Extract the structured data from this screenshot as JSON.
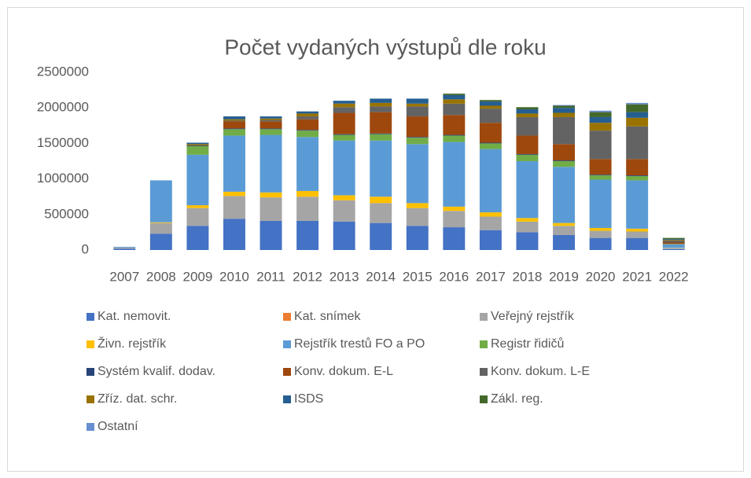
{
  "chart_data": {
    "type": "stacked-bar",
    "title": "Počet vydaných výstupů dle roku",
    "categories": [
      "2007",
      "2008",
      "2009",
      "2010",
      "2011",
      "2012",
      "2013",
      "2014",
      "2015",
      "2016",
      "2017",
      "2018",
      "2019",
      "2020",
      "2021",
      "2022"
    ],
    "ylim": [
      0,
      2500000
    ],
    "yticks": [
      0,
      500000,
      1000000,
      1500000,
      2000000,
      2500000
    ],
    "grid": false,
    "legend": "bottom",
    "series": [
      {
        "name": "Kat. nemovit.",
        "color": "#4472c4",
        "values": [
          20000,
          230000,
          340000,
          440000,
          410000,
          410000,
          400000,
          380000,
          340000,
          320000,
          280000,
          250000,
          210000,
          170000,
          170000,
          15000
        ]
      },
      {
        "name": "Kat. snímek",
        "color": "#ed7d31",
        "values": [
          0,
          0,
          0,
          0,
          0,
          0,
          0,
          0,
          0,
          0,
          0,
          0,
          0,
          0,
          0,
          0
        ]
      },
      {
        "name": "Veřejný rejstřík",
        "color": "#a5a5a5",
        "values": [
          15000,
          150000,
          250000,
          320000,
          330000,
          340000,
          300000,
          280000,
          250000,
          230000,
          190000,
          150000,
          130000,
          100000,
          90000,
          10000
        ]
      },
      {
        "name": "Živn. rejstřík",
        "color": "#ffc000",
        "values": [
          0,
          10000,
          40000,
          60000,
          70000,
          80000,
          70000,
          90000,
          70000,
          60000,
          60000,
          50000,
          40000,
          40000,
          40000,
          5000
        ]
      },
      {
        "name": "Rejstřík trestů FO a PO",
        "color": "#5b9bd5",
        "values": [
          10000,
          590000,
          710000,
          790000,
          810000,
          760000,
          770000,
          790000,
          830000,
          910000,
          890000,
          800000,
          790000,
          680000,
          680000,
          50000
        ]
      },
      {
        "name": "Registr řidičů",
        "color": "#70ad47",
        "values": [
          0,
          0,
          120000,
          90000,
          80000,
          90000,
          80000,
          90000,
          90000,
          90000,
          80000,
          90000,
          80000,
          60000,
          60000,
          5000
        ]
      },
      {
        "name": "Systém kvalif. dodav.",
        "color": "#264478",
        "values": [
          0,
          0,
          10000,
          10000,
          10000,
          10000,
          10000,
          10000,
          10000,
          10000,
          10000,
          10000,
          10000,
          10000,
          10000,
          0
        ]
      },
      {
        "name": "Konv. dokum. E-L",
        "color": "#9e480e",
        "values": [
          0,
          0,
          0,
          100000,
          100000,
          150000,
          300000,
          300000,
          290000,
          280000,
          280000,
          260000,
          230000,
          220000,
          230000,
          20000
        ]
      },
      {
        "name": "Konv. dokum. L-E",
        "color": "#636363",
        "values": [
          0,
          0,
          0,
          10000,
          20000,
          40000,
          80000,
          80000,
          140000,
          160000,
          200000,
          260000,
          380000,
          400000,
          460000,
          30000
        ]
      },
      {
        "name": "Zříz. dat. schr.",
        "color": "#997300",
        "values": [
          0,
          0,
          20000,
          20000,
          20000,
          40000,
          50000,
          50000,
          40000,
          60000,
          40000,
          50000,
          60000,
          110000,
          120000,
          10000
        ]
      },
      {
        "name": "ISDS",
        "color": "#255e91",
        "values": [
          0,
          0,
          20000,
          40000,
          30000,
          30000,
          40000,
          60000,
          70000,
          60000,
          60000,
          60000,
          70000,
          80000,
          80000,
          10000
        ]
      },
      {
        "name": "Zákl. reg.",
        "color": "#43682b",
        "values": [
          0,
          0,
          0,
          0,
          0,
          0,
          0,
          0,
          0,
          20000,
          20000,
          30000,
          30000,
          70000,
          110000,
          15000
        ]
      },
      {
        "name": "Ostatní",
        "color": "#698ed0",
        "values": [
          0,
          0,
          0,
          0,
          0,
          0,
          0,
          0,
          0,
          0,
          0,
          0,
          10000,
          20000,
          20000,
          0
        ]
      }
    ]
  }
}
